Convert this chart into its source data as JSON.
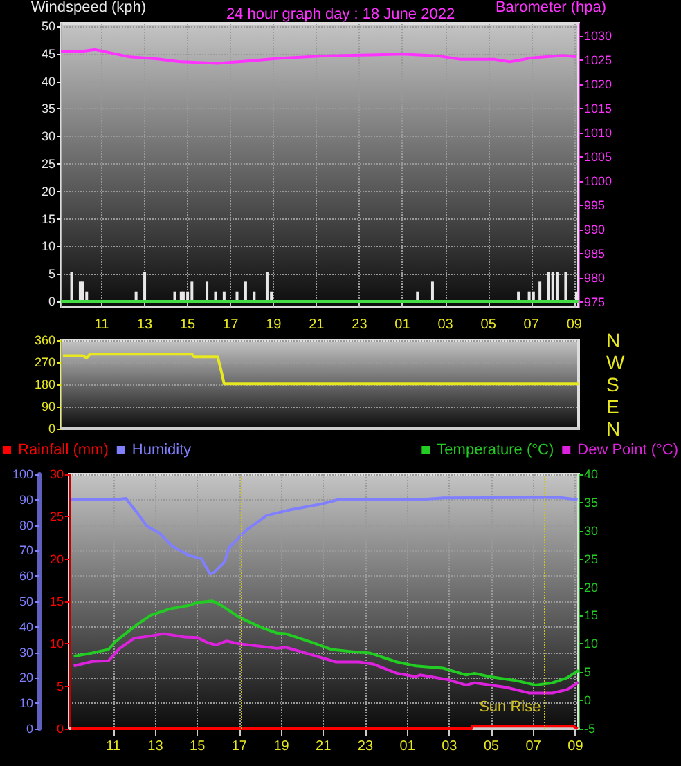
{
  "chart_data": [
    {
      "type": "bar",
      "title": "24 hour graph day : 18 June 2022",
      "ylabel": "Windspeed (kph)",
      "y2label": "Barometer (hpa)",
      "xlim": [
        "2022-06-18T09:06",
        "2022-06-19T09:12"
      ],
      "xticks": [
        {
          "value": "2022-06-18T11:00",
          "label": "11"
        },
        {
          "value": "2022-06-18T13:00",
          "label": "13"
        },
        {
          "value": "2022-06-18T15:00",
          "label": "15"
        },
        {
          "value": "2022-06-18T17:00",
          "label": "17"
        },
        {
          "value": "2022-06-18T19:00",
          "label": "19"
        },
        {
          "value": "2022-06-18T21:00",
          "label": "21"
        },
        {
          "value": "2022-06-18T23:00",
          "label": "23"
        },
        {
          "value": "2022-06-19T01:00",
          "label": "01"
        },
        {
          "value": "2022-06-19T03:00",
          "label": "03"
        },
        {
          "value": "2022-06-19T05:00",
          "label": "05"
        },
        {
          "value": "2022-06-19T07:00",
          "label": "07"
        },
        {
          "value": "2022-06-19T09:00",
          "label": "09"
        }
      ],
      "ylim": [
        -1,
        50.5
      ],
      "yticks": [
        0,
        5,
        10,
        15,
        20,
        25,
        30,
        35,
        40,
        45,
        50
      ],
      "y2lim": [
        974,
        1032.5
      ],
      "y2ticks": [
        975,
        980,
        985,
        990,
        995,
        1000,
        1005,
        1010,
        1015,
        1020,
        1025,
        1030
      ],
      "grid": true,
      "series": [
        {
          "color": "#e8e8e8",
          "x": [
            "2022-06-18T09:36",
            "2022-06-18T10:00",
            "2022-06-18T10:06",
            "2022-06-18T10:18",
            "2022-06-18T12:36",
            "2022-06-18T13:00",
            "2022-06-18T14:24",
            "2022-06-18T14:42",
            "2022-06-18T14:48",
            "2022-06-18T15:00",
            "2022-06-18T15:12",
            "2022-06-18T15:54",
            "2022-06-18T16:18",
            "2022-06-18T16:42",
            "2022-06-18T17:18",
            "2022-06-18T17:42",
            "2022-06-18T18:06",
            "2022-06-18T18:42",
            "2022-06-18T18:54",
            "2022-06-19T01:42",
            "2022-06-19T02:24",
            "2022-06-19T06:24",
            "2022-06-19T06:54",
            "2022-06-19T07:06",
            "2022-06-19T07:24",
            "2022-06-19T07:48",
            "2022-06-19T08:00",
            "2022-06-19T08:12",
            "2022-06-19T08:36",
            "2022-06-19T09:06"
          ],
          "values": [
            5.4,
            3.6,
            3.6,
            1.8,
            1.8,
            5.4,
            1.8,
            1.8,
            1.8,
            1.8,
            3.6,
            3.6,
            1.8,
            1.8,
            1.8,
            3.6,
            1.8,
            5.4,
            1.8,
            1.8,
            3.6,
            1.8,
            1.8,
            1.8,
            3.6,
            5.4,
            5.4,
            5.4,
            5.4,
            1.8
          ]
        },
        {
          "type": "line",
          "color": "#44dd44",
          "x": [
            "2022-06-18T09:06",
            "2022-06-19T09:12"
          ],
          "values": [
            0,
            0
          ]
        },
        {
          "type": "line",
          "axis": "y2",
          "color": "#ff33ff",
          "x": [
            "2022-06-18T09:06",
            "2022-06-18T10:00",
            "2022-06-18T10:42",
            "2022-06-18T12:18",
            "2022-06-18T13:36",
            "2022-06-18T14:42",
            "2022-06-18T16:24",
            "2022-06-18T17:54",
            "2022-06-18T19:12",
            "2022-06-18T21:18",
            "2022-06-18T23:30",
            "2022-06-19T01:00",
            "2022-06-19T02:42",
            "2022-06-19T03:42",
            "2022-06-19T05:18",
            "2022-06-19T06:00",
            "2022-06-19T07:00",
            "2022-06-19T08:30",
            "2022-06-19T09:06"
          ],
          "values": [
            1026.7,
            1026.7,
            1027.1,
            1025.6,
            1025.2,
            1024.6,
            1024.3,
            1024.8,
            1025.3,
            1025.8,
            1026.0,
            1026.2,
            1025.8,
            1025.1,
            1025.1,
            1024.6,
            1025.4,
            1025.9,
            1025.6
          ]
        }
      ]
    },
    {
      "type": "line",
      "xlim": [
        "2022-06-18T09:06",
        "2022-06-19T09:12"
      ],
      "ylim": [
        0,
        360
      ],
      "yticks": [
        0,
        90,
        180,
        270,
        360
      ],
      "annotations": [
        "N",
        "W",
        "S",
        "E",
        "N"
      ],
      "tick_labels": "y",
      "grid": true,
      "series": [
        {
          "color": "#e8e820",
          "x": [
            "2022-06-18T09:12",
            "2022-06-18T10:06",
            "2022-06-18T10:18",
            "2022-06-18T10:27",
            "2022-06-18T15:12",
            "2022-06-18T15:18",
            "2022-06-18T16:24",
            "2022-06-18T16:33",
            "2022-06-18T16:42",
            "2022-06-19T09:12"
          ],
          "values": [
            297,
            297,
            288,
            303,
            303,
            292,
            292,
            240,
            182,
            182
          ]
        }
      ]
    },
    {
      "type": "line",
      "legend": "top",
      "xlim": [
        "2022-06-18T08:54",
        "2022-06-19T09:09"
      ],
      "xticks": [
        {
          "value": "2022-06-18T11:00",
          "label": "11"
        },
        {
          "value": "2022-06-18T13:00",
          "label": "13"
        },
        {
          "value": "2022-06-18T15:00",
          "label": "15"
        },
        {
          "value": "2022-06-18T17:00",
          "label": "17"
        },
        {
          "value": "2022-06-18T19:00",
          "label": "19"
        },
        {
          "value": "2022-06-18T21:00",
          "label": "21"
        },
        {
          "value": "2022-06-18T23:00",
          "label": "23"
        },
        {
          "value": "2022-06-19T01:00",
          "label": "01"
        },
        {
          "value": "2022-06-19T03:00",
          "label": "03"
        },
        {
          "value": "2022-06-19T05:00",
          "label": "05"
        },
        {
          "value": "2022-06-19T07:00",
          "label": "07"
        },
        {
          "value": "2022-06-19T09:00",
          "label": "09"
        }
      ],
      "ylim": [
        0,
        100
      ],
      "yticks": [
        0,
        10,
        20,
        30,
        40,
        50,
        60,
        70,
        80,
        90,
        100
      ],
      "y2lim": [
        0,
        30
      ],
      "y2ticks": [
        0,
        5,
        10,
        15,
        20,
        25,
        30
      ],
      "y3lim": [
        -5,
        40
      ],
      "y3ticks": [
        -5,
        0,
        5,
        10,
        15,
        20,
        25,
        30,
        35,
        40
      ],
      "grid": true,
      "ref_lines": [
        {
          "axis": "x",
          "value": "2022-06-18T17:06",
          "color": "#d0c020",
          "line_style": "dotted"
        },
        {
          "axis": "x",
          "value": "2022-06-19T07:33",
          "label": "Sun Rise",
          "color": "#d0c020",
          "line_style": "dotted"
        }
      ],
      "series": [
        {
          "name": "Rainfall (mm)",
          "axis": "y2",
          "color": "#ff0000",
          "x": [
            "2022-06-18T09:00",
            "2022-06-19T04:03",
            "2022-06-19T04:06",
            "2022-06-19T08:54",
            "2022-06-19T09:06"
          ],
          "values": [
            0,
            0,
            0.3,
            0.3,
            0
          ]
        },
        {
          "name": "Humidity",
          "color": "#8080ff",
          "x": [
            "2022-06-18T09:00",
            "2022-06-18T11:06",
            "2022-06-18T11:36",
            "2022-06-18T12:12",
            "2022-06-18T12:36",
            "2022-06-18T13:12",
            "2022-06-18T13:48",
            "2022-06-18T14:36",
            "2022-06-18T15:12",
            "2022-06-18T15:36",
            "2022-06-18T15:48",
            "2022-06-18T16:18",
            "2022-06-18T16:30",
            "2022-06-18T17:18",
            "2022-06-18T18:18",
            "2022-06-18T19:24",
            "2022-06-18T20:54",
            "2022-06-18T21:42",
            "2022-06-19T01:36",
            "2022-06-19T02:42",
            "2022-06-19T08:12",
            "2022-06-19T09:06"
          ],
          "values": [
            90,
            90,
            90.5,
            84.2,
            79.6,
            76.9,
            71.8,
            68.1,
            66.8,
            60.8,
            61.4,
            65.6,
            71,
            77.8,
            83.8,
            86,
            88.3,
            90,
            90,
            90.7,
            90.9,
            90
          ]
        },
        {
          "name": "Temperature (°C)",
          "axis": "y3",
          "color": "#22cc22",
          "x": [
            "2022-06-18T09:07",
            "2022-06-18T10:00",
            "2022-06-18T10:46",
            "2022-06-18T11:06",
            "2022-06-18T12:12",
            "2022-06-18T12:48",
            "2022-06-18T13:42",
            "2022-06-18T14:36",
            "2022-06-18T15:00",
            "2022-06-18T15:42",
            "2022-06-18T16:06",
            "2022-06-18T17:00",
            "2022-06-18T18:06",
            "2022-06-18T18:48",
            "2022-06-18T19:12",
            "2022-06-18T20:30",
            "2022-06-18T21:24",
            "2022-06-18T22:42",
            "2022-06-18T23:12",
            "2022-06-19T00:30",
            "2022-06-19T01:24",
            "2022-06-19T02:42",
            "2022-06-19T03:48",
            "2022-06-19T04:12",
            "2022-06-19T04:54",
            "2022-06-19T06:12",
            "2022-06-19T07:06",
            "2022-06-19T07:54",
            "2022-06-19T08:36",
            "2022-06-19T09:09"
          ],
          "values": [
            7.8,
            8.4,
            9.0,
            10.4,
            13.6,
            15.1,
            16.2,
            16.8,
            17.3,
            17.6,
            16.9,
            14.7,
            12.8,
            11.9,
            11.8,
            10.2,
            9.0,
            8.5,
            8.4,
            6.8,
            6.1,
            5.7,
            4.5,
            4.8,
            4.2,
            3.5,
            2.7,
            3.1,
            4.0,
            5.3
          ]
        },
        {
          "name": "Dew Point (°C)",
          "axis": "y3",
          "color": "#dd22dd",
          "x": [
            "2022-06-18T09:07",
            "2022-06-18T10:00",
            "2022-06-18T10:46",
            "2022-06-18T11:18",
            "2022-06-18T12:00",
            "2022-06-18T12:48",
            "2022-06-18T13:24",
            "2022-06-18T14:24",
            "2022-06-18T15:00",
            "2022-06-18T15:30",
            "2022-06-18T15:54",
            "2022-06-18T16:24",
            "2022-06-18T17:00",
            "2022-06-18T17:54",
            "2022-06-18T18:48",
            "2022-06-18T19:12",
            "2022-06-18T20:30",
            "2022-06-18T21:36",
            "2022-06-18T22:42",
            "2022-06-18T23:24",
            "2022-06-19T00:30",
            "2022-06-19T01:24",
            "2022-06-19T01:36",
            "2022-06-19T02:54",
            "2022-06-19T03:48",
            "2022-06-19T04:12",
            "2022-06-19T05:42",
            "2022-06-19T06:48",
            "2022-06-19T07:54",
            "2022-06-19T08:36",
            "2022-06-19T09:09"
          ],
          "values": [
            6.1,
            6.9,
            7.0,
            9.2,
            11.0,
            11.4,
            11.8,
            11.2,
            11.1,
            10.2,
            9.8,
            10.5,
            10.0,
            9.6,
            9.2,
            9.4,
            8.0,
            6.8,
            6.8,
            6.4,
            4.8,
            4.2,
            4.5,
            3.7,
            2.7,
            3.1,
            2.3,
            1.3,
            1.3,
            1.9,
            3.2
          ]
        }
      ]
    }
  ]
}
